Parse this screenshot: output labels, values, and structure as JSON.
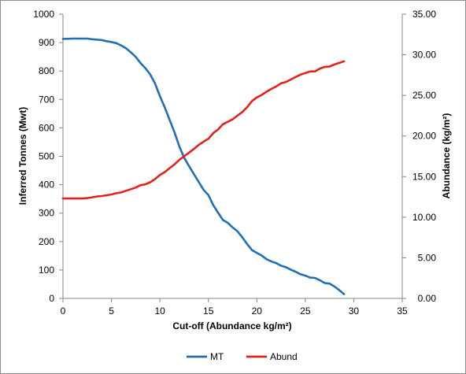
{
  "chart_data": {
    "type": "line",
    "xlabel": "Cut-off (Abundance kg/m²)",
    "ylabel": "Inferred Tonnes (Mwt)",
    "y2label": "Abundance (kg/m²)",
    "xlim": [
      0,
      35
    ],
    "ylim": [
      0,
      1000
    ],
    "y2lim": [
      0,
      35
    ],
    "xticks": [
      "0",
      "5",
      "10",
      "15",
      "20",
      "25",
      "30",
      "35"
    ],
    "yticks": [
      "0",
      "100",
      "200",
      "300",
      "400",
      "500",
      "600",
      "700",
      "800",
      "900",
      "1000"
    ],
    "y2ticks": [
      "0.00",
      "5.00",
      "10.00",
      "15.00",
      "20.00",
      "25.00",
      "30.00",
      "35.00"
    ],
    "grid": false,
    "legend_position": "bottom",
    "series": [
      {
        "name": "MT",
        "axis": "left",
        "color": "#1f6fb5",
        "points": [
          [
            0,
            913
          ],
          [
            1,
            914
          ],
          [
            2,
            914
          ],
          [
            2.5,
            914
          ],
          [
            3,
            912
          ],
          [
            4,
            909
          ],
          [
            4.5,
            905
          ],
          [
            5,
            902
          ],
          [
            5.5,
            898
          ],
          [
            6,
            890
          ],
          [
            6.5,
            880
          ],
          [
            7,
            866
          ],
          [
            7.5,
            850
          ],
          [
            8,
            828
          ],
          [
            8.5,
            810
          ],
          [
            9,
            788
          ],
          [
            9.5,
            756
          ],
          [
            10,
            712
          ],
          [
            10.5,
            672
          ],
          [
            11,
            628
          ],
          [
            11.5,
            585
          ],
          [
            12,
            535
          ],
          [
            12.5,
            495
          ],
          [
            13,
            466
          ],
          [
            13.5,
            438
          ],
          [
            14,
            410
          ],
          [
            14.5,
            382
          ],
          [
            15,
            364
          ],
          [
            15.5,
            328
          ],
          [
            16,
            302
          ],
          [
            16.5,
            276
          ],
          [
            17,
            266
          ],
          [
            17.5,
            250
          ],
          [
            18,
            236
          ],
          [
            18.5,
            215
          ],
          [
            19,
            191
          ],
          [
            19.5,
            170
          ],
          [
            20,
            160
          ],
          [
            20.5,
            151
          ],
          [
            21,
            138
          ],
          [
            21.5,
            130
          ],
          [
            22,
            124
          ],
          [
            22.5,
            115
          ],
          [
            23,
            110
          ],
          [
            23.5,
            101
          ],
          [
            24,
            94
          ],
          [
            24.5,
            85
          ],
          [
            25,
            80
          ],
          [
            25.5,
            73
          ],
          [
            26,
            72
          ],
          [
            26.5,
            64
          ],
          [
            27,
            54
          ],
          [
            27.5,
            52
          ],
          [
            28,
            42
          ],
          [
            28.5,
            29
          ],
          [
            29,
            15
          ]
        ]
      },
      {
        "name": "Abund",
        "axis": "right",
        "color": "#e2231a",
        "points": [
          [
            0,
            12.3
          ],
          [
            1,
            12.3
          ],
          [
            2,
            12.3
          ],
          [
            2.5,
            12.35
          ],
          [
            3,
            12.45
          ],
          [
            3.5,
            12.55
          ],
          [
            4,
            12.6
          ],
          [
            5,
            12.8
          ],
          [
            5.5,
            12.95
          ],
          [
            6,
            13.05
          ],
          [
            6.5,
            13.25
          ],
          [
            7,
            13.45
          ],
          [
            7.5,
            13.65
          ],
          [
            8,
            13.95
          ],
          [
            8.5,
            14.05
          ],
          [
            9,
            14.3
          ],
          [
            9.5,
            14.7
          ],
          [
            10,
            15.2
          ],
          [
            10.5,
            15.55
          ],
          [
            11,
            16.05
          ],
          [
            11.5,
            16.5
          ],
          [
            12,
            17.05
          ],
          [
            12.5,
            17.5
          ],
          [
            13,
            17.95
          ],
          [
            13.5,
            18.4
          ],
          [
            14,
            18.9
          ],
          [
            14.5,
            19.3
          ],
          [
            15,
            19.65
          ],
          [
            15.5,
            20.35
          ],
          [
            16,
            20.8
          ],
          [
            16.5,
            21.45
          ],
          [
            17,
            21.75
          ],
          [
            17.5,
            22.05
          ],
          [
            18,
            22.5
          ],
          [
            18.5,
            22.95
          ],
          [
            19,
            23.55
          ],
          [
            19.5,
            24.3
          ],
          [
            20,
            24.75
          ],
          [
            20.5,
            25.05
          ],
          [
            21,
            25.45
          ],
          [
            21.5,
            25.8
          ],
          [
            22,
            26.1
          ],
          [
            22.5,
            26.5
          ],
          [
            23,
            26.65
          ],
          [
            23.5,
            26.95
          ],
          [
            24,
            27.25
          ],
          [
            24.5,
            27.55
          ],
          [
            25,
            27.75
          ],
          [
            25.5,
            27.95
          ],
          [
            26,
            27.95
          ],
          [
            26.5,
            28.3
          ],
          [
            27,
            28.5
          ],
          [
            27.5,
            28.55
          ],
          [
            28,
            28.8
          ],
          [
            28.5,
            29.0
          ],
          [
            29,
            29.2
          ]
        ]
      }
    ]
  }
}
